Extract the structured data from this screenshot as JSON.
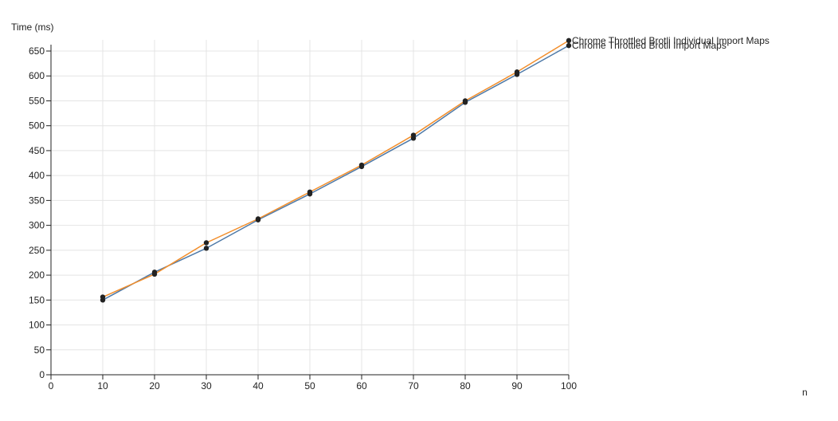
{
  "chart_data": {
    "type": "line",
    "title": "",
    "xlabel": "n",
    "ylabel": "Time (ms)",
    "xlim": [
      0,
      100
    ],
    "ylim": [
      0,
      650
    ],
    "x_ticks": [
      0,
      10,
      20,
      30,
      40,
      50,
      60,
      70,
      80,
      90,
      100
    ],
    "y_ticks": [
      0,
      50,
      100,
      150,
      200,
      250,
      300,
      350,
      400,
      450,
      500,
      550,
      600,
      650
    ],
    "grid": true,
    "legend": "end-of-line labels",
    "x": [
      10,
      20,
      30,
      40,
      50,
      60,
      70,
      80,
      90,
      100
    ],
    "series": [
      {
        "name": "Chrome Throttled Brotli Import Maps",
        "color": "#4e79a7",
        "values": [
          150,
          206,
          254,
          311,
          363,
          418,
          475,
          547,
          603,
          661
        ]
      },
      {
        "name": "Chrome Throttled Brotli Individual Import Maps",
        "color": "#f28e2b",
        "values": [
          156,
          202,
          265,
          313,
          367,
          421,
          481,
          550,
          608,
          671
        ]
      }
    ]
  }
}
